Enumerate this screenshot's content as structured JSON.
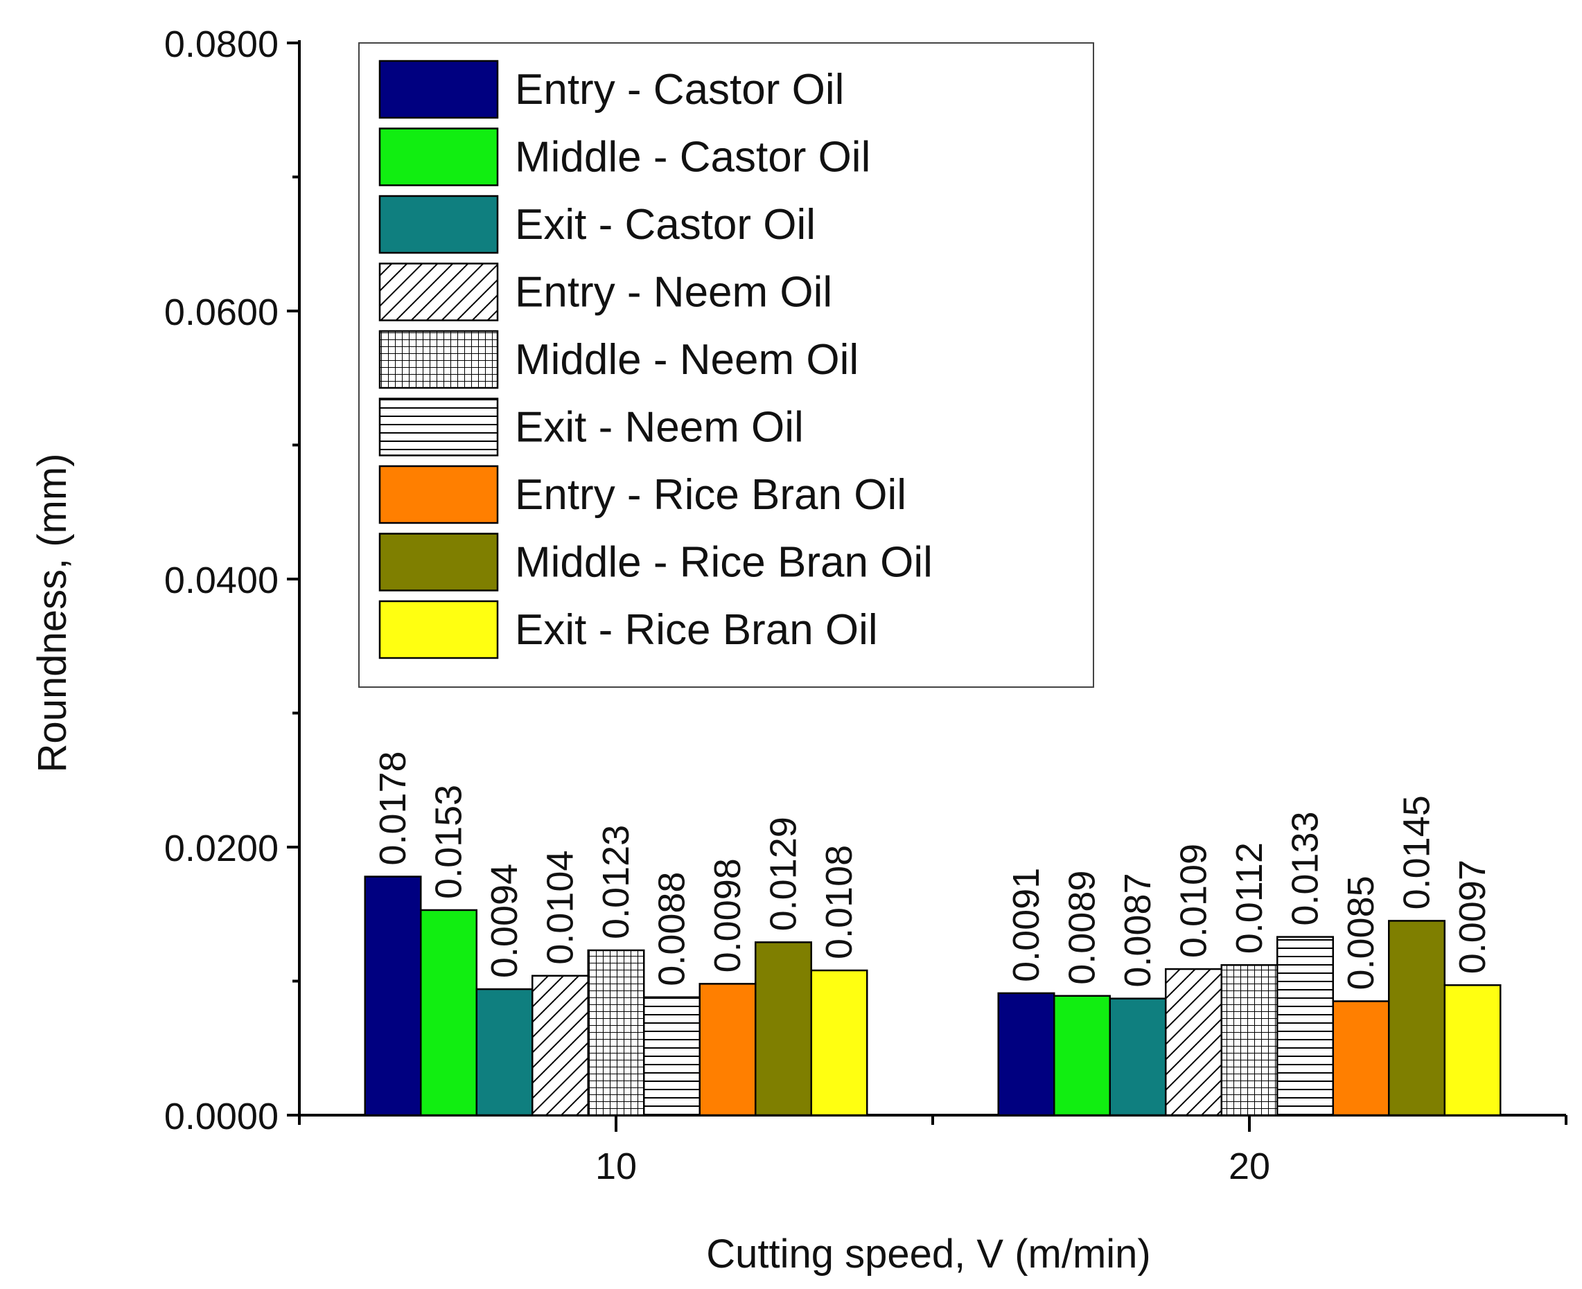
{
  "chart_data": {
    "type": "bar",
    "title": "",
    "xlabel": "Cutting speed, V (m/min)",
    "ylabel": "Roundness, (mm)",
    "categories": [
      "10",
      "20"
    ],
    "ylim": [
      0,
      0.08
    ],
    "yticks": [
      "0.0000",
      "0.0200",
      "0.0400",
      "0.0600",
      "0.0800"
    ],
    "grid": false,
    "legend_position": "top-left inside",
    "series": [
      {
        "name": "Entry - Castor Oil",
        "values": [
          0.0178,
          0.0091
        ],
        "labels": [
          "0.0178",
          "0.0091"
        ],
        "color": "#000080",
        "pattern": "solid"
      },
      {
        "name": "Middle - Castor Oil",
        "values": [
          0.0153,
          0.0089
        ],
        "labels": [
          "0.0153",
          "0.0089"
        ],
        "color": "#11ee11",
        "pattern": "solid"
      },
      {
        "name": "Exit - Castor Oil",
        "values": [
          0.0094,
          0.0087
        ],
        "labels": [
          "0.0094",
          "0.0087"
        ],
        "color": "#0f7f7f",
        "pattern": "solid"
      },
      {
        "name": "Entry - Neem Oil",
        "values": [
          0.0104,
          0.0109
        ],
        "labels": [
          "0.0104",
          "0.0109"
        ],
        "color": "#ffffff",
        "pattern": "diagonal"
      },
      {
        "name": "Middle - Neem Oil",
        "values": [
          0.0123,
          0.0112
        ],
        "labels": [
          "0.0123",
          "0.0112"
        ],
        "color": "#ffffff",
        "pattern": "grid"
      },
      {
        "name": "Exit - Neem Oil",
        "values": [
          0.0088,
          0.0133
        ],
        "labels": [
          "0.0088",
          "0.0133"
        ],
        "color": "#ffffff",
        "pattern": "horizontal"
      },
      {
        "name": "Entry - Rice Bran Oil",
        "values": [
          0.0098,
          0.0085
        ],
        "labels": [
          "0.0098",
          "0.0085"
        ],
        "color": "#ff7f00",
        "pattern": "solid"
      },
      {
        "name": "Middle - Rice Bran Oil",
        "values": [
          0.0129,
          0.0145
        ],
        "labels": [
          "0.0129",
          "0.0145"
        ],
        "color": "#7f7f00",
        "pattern": "solid"
      },
      {
        "name": "Exit - Rice Bran Oil",
        "values": [
          0.0108,
          0.0097
        ],
        "labels": [
          "0.0108",
          "0.0097"
        ],
        "color": "#ffff11",
        "pattern": "solid"
      }
    ]
  }
}
